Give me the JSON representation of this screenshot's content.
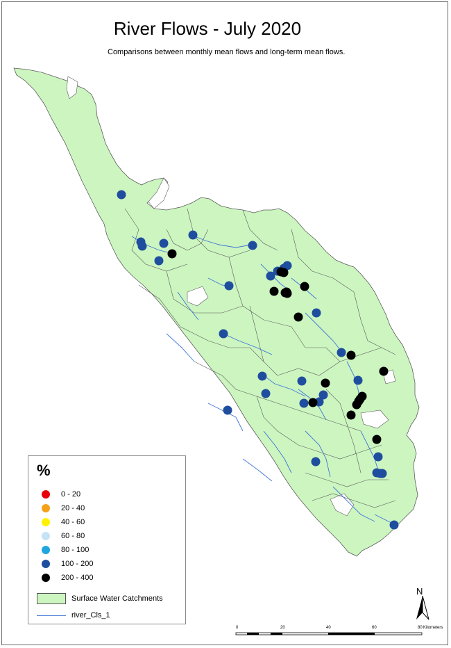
{
  "map": {
    "title": "River Flows - July 2020",
    "subtitle": "Comparisons between monthly mean flows and long-term mean flows.",
    "land_color": "#ccf5c0",
    "river_color": "#3e74d8",
    "boundary_color": "#5c5c5c",
    "classes": [
      {
        "label": "0 - 20",
        "color": "#e8000b"
      },
      {
        "label": "20 - 40",
        "color": "#f5a21b"
      },
      {
        "label": "40 - 60",
        "color": "#fff200"
      },
      {
        "label": "60 - 80",
        "color": "#c5e3f6"
      },
      {
        "label": "80 - 100",
        "color": "#1fa6de"
      },
      {
        "label": "100 - 200",
        "color": "#1f4e9e"
      },
      {
        "label": "200 - 400",
        "color": "#000000"
      }
    ],
    "site_counts": {
      "100 - 200": 30,
      "200 - 400": 19
    }
  },
  "legend": {
    "heading": "%",
    "catchments_label": "Surface Water Catchments",
    "rivers_label": "river_Cls_1"
  },
  "north_arrow": {
    "label": "N",
    "icon": "north-arrow-icon"
  },
  "scale": {
    "ticks": [
      "0",
      "20",
      "40",
      "60",
      "80"
    ],
    "unit": "Kilometers"
  }
}
